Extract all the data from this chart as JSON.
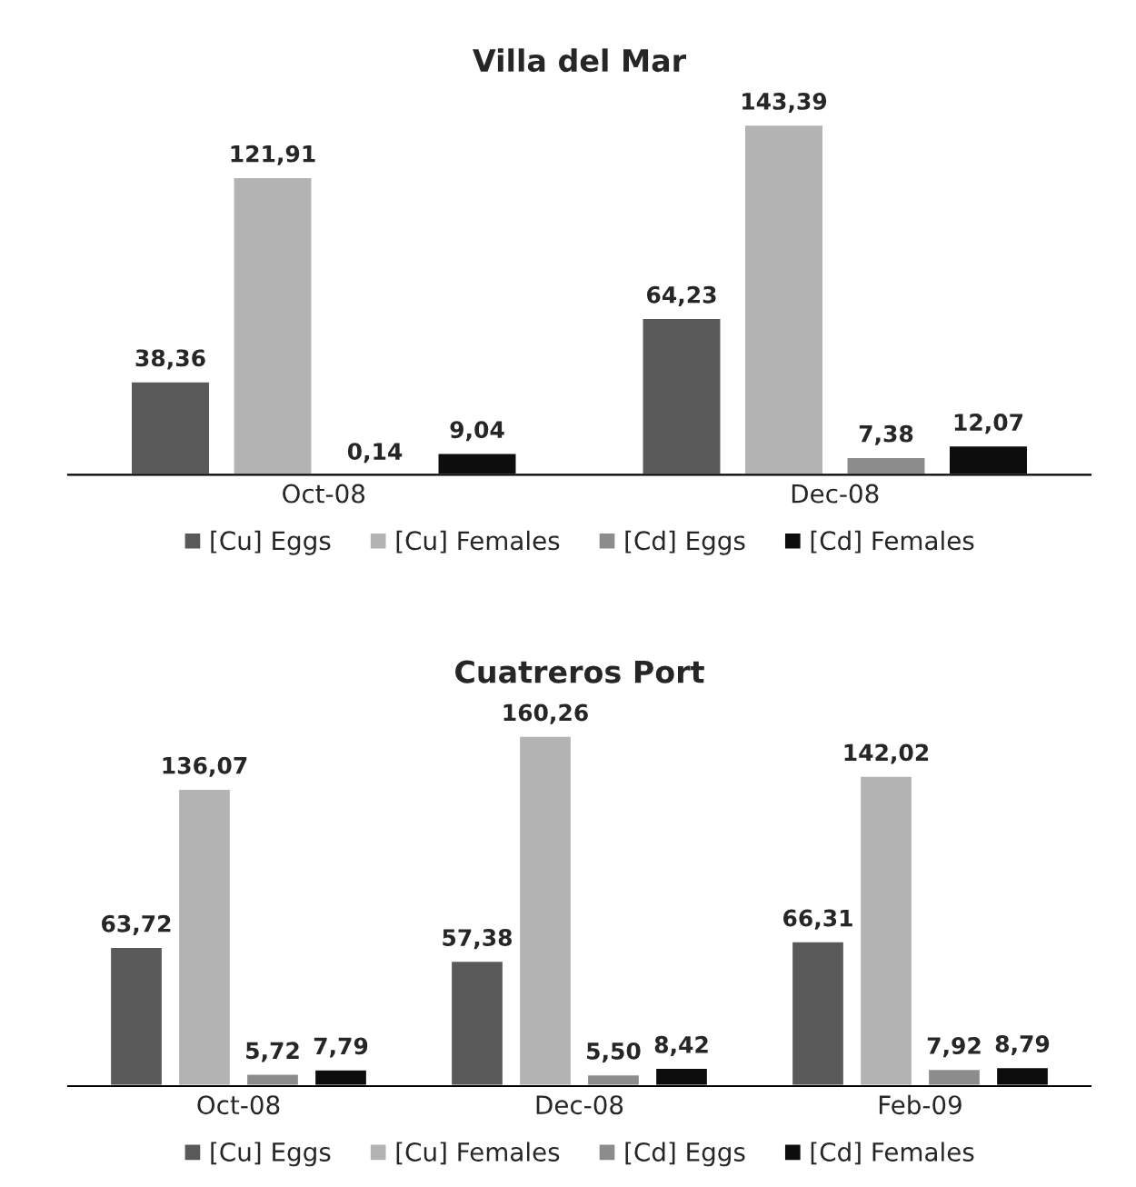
{
  "chart_data": [
    {
      "type": "bar",
      "title": "Villa del Mar",
      "categories": [
        "Oct-08",
        "Dec-08"
      ],
      "legend": "bottom",
      "series": [
        {
          "name": "[Cu] Eggs",
          "color": "#595959",
          "values": [
            38.36,
            64.23
          ],
          "value_labels": [
            "38,36",
            "64,23"
          ]
        },
        {
          "name": "[Cu] Females",
          "color": "#b3b3b3",
          "values": [
            121.91,
            143.39
          ],
          "value_labels": [
            "121,91",
            "143,39"
          ]
        },
        {
          "name": "[Cd] Eggs",
          "color": "#8c8c8c",
          "values": [
            0.14,
            7.38
          ],
          "value_labels": [
            "0,14",
            "7,38"
          ]
        },
        {
          "name": "[Cd] Females",
          "color": "#0d0d0d",
          "values": [
            9.04,
            12.07
          ],
          "value_labels": [
            "9,04",
            "12,07"
          ]
        }
      ]
    },
    {
      "type": "bar",
      "title": "Cuatreros Port",
      "categories": [
        "Oct-08",
        "Dec-08",
        "Feb-09"
      ],
      "legend": "bottom",
      "series": [
        {
          "name": "[Cu] Eggs",
          "color": "#595959",
          "values": [
            63.72,
            57.38,
            66.31
          ],
          "value_labels": [
            "63,72",
            "57,38",
            "66,31"
          ]
        },
        {
          "name": "[Cu] Females",
          "color": "#b3b3b3",
          "values": [
            136.07,
            160.26,
            142.02
          ],
          "value_labels": [
            "136,07",
            "160,26",
            "142,02"
          ]
        },
        {
          "name": "[Cd] Eggs",
          "color": "#8c8c8c",
          "values": [
            5.72,
            5.5,
            7.92
          ],
          "value_labels": [
            "5,72",
            "5,50",
            "7,92"
          ]
        },
        {
          "name": "[Cd] Females",
          "color": "#0d0d0d",
          "values": [
            7.79,
            8.42,
            8.79
          ],
          "value_labels": [
            "7,79",
            "8,42",
            "8,79"
          ]
        }
      ]
    }
  ]
}
